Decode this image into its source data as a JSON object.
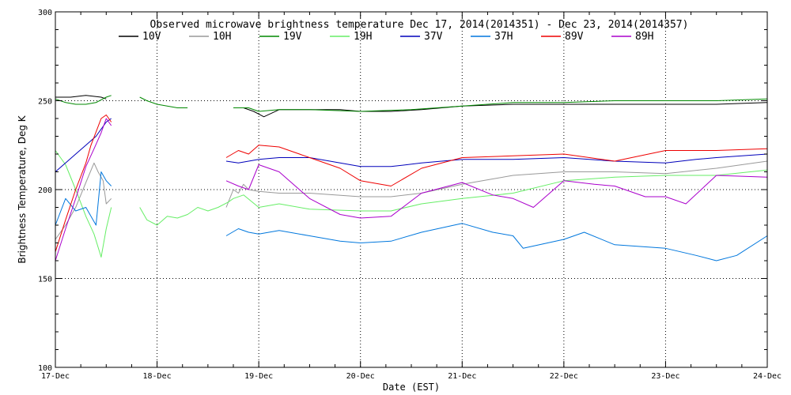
{
  "chart_data": {
    "type": "line",
    "title": "Observed microwave brightness temperature Dec 17, 2014(2014351) - Dec 23, 2014(2014357)",
    "xlabel": "Date (EST)",
    "ylabel": "Brightness Temperature, Deg K",
    "xlim": [
      0,
      7
    ],
    "ylim": [
      100,
      300
    ],
    "x_ticks": [
      {
        "value": 0,
        "label": "17-Dec"
      },
      {
        "value": 1,
        "label": "18-Dec"
      },
      {
        "value": 2,
        "label": "19-Dec"
      },
      {
        "value": 3,
        "label": "20-Dec"
      },
      {
        "value": 4,
        "label": "21-Dec"
      },
      {
        "value": 5,
        "label": "22-Dec"
      },
      {
        "value": 6,
        "label": "23-Dec"
      },
      {
        "value": 7,
        "label": "24-Dec"
      }
    ],
    "y_ticks": [
      {
        "value": 100,
        "label": "100"
      },
      {
        "value": 150,
        "label": "150"
      },
      {
        "value": 200,
        "label": "200"
      },
      {
        "value": 250,
        "label": "250"
      },
      {
        "value": 300,
        "label": "300"
      }
    ],
    "grid": true,
    "legend_position": "top",
    "series": [
      {
        "name": "10V",
        "color": "#000000",
        "segments": [
          [
            [
              0.0,
              252
            ],
            [
              0.15,
              252
            ],
            [
              0.3,
              253
            ],
            [
              0.45,
              252
            ],
            [
              0.5,
              251
            ]
          ],
          [
            [
              1.75,
              246
            ],
            [
              1.85,
              246
            ],
            [
              1.95,
              244
            ],
            [
              2.05,
              241
            ],
            [
              2.2,
              245
            ],
            [
              2.5,
              245
            ],
            [
              2.8,
              245
            ],
            [
              3.0,
              244
            ],
            [
              3.3,
              244
            ],
            [
              3.6,
              245
            ],
            [
              4.0,
              247
            ],
            [
              4.5,
              248
            ],
            [
              5.0,
              248
            ],
            [
              5.5,
              248
            ],
            [
              6.0,
              248
            ],
            [
              6.5,
              248
            ],
            [
              7.0,
              249
            ]
          ]
        ]
      },
      {
        "name": "10H",
        "color": "#999999",
        "segments": [
          [
            [
              0.0,
              172
            ],
            [
              0.1,
              180
            ],
            [
              0.2,
              190
            ],
            [
              0.3,
              204
            ],
            [
              0.38,
              215
            ],
            [
              0.42,
              210
            ],
            [
              0.47,
              205
            ],
            [
              0.5,
              192
            ],
            [
              0.55,
              195
            ]
          ],
          [
            [
              1.68,
              190
            ],
            [
              1.75,
              200
            ],
            [
              1.8,
              198
            ],
            [
              1.85,
              203
            ],
            [
              1.9,
              200
            ],
            [
              2.0,
              199
            ],
            [
              2.2,
              198
            ],
            [
              2.5,
              198
            ],
            [
              3.0,
              196
            ],
            [
              3.3,
              196
            ],
            [
              3.6,
              198
            ],
            [
              4.0,
              203
            ],
            [
              4.3,
              206
            ],
            [
              4.5,
              208
            ],
            [
              5.0,
              210
            ],
            [
              5.5,
              210
            ],
            [
              6.0,
              209
            ],
            [
              6.5,
              212
            ],
            [
              7.0,
              216
            ]
          ]
        ]
      },
      {
        "name": "19V",
        "color": "#008800",
        "segments": [
          [
            [
              0.0,
              251
            ],
            [
              0.1,
              249
            ],
            [
              0.2,
              248
            ],
            [
              0.3,
              248
            ],
            [
              0.4,
              249
            ],
            [
              0.5,
              252
            ],
            [
              0.55,
              253
            ]
          ],
          [
            [
              0.83,
              252
            ],
            [
              0.9,
              250
            ],
            [
              1.0,
              248
            ],
            [
              1.2,
              246
            ],
            [
              1.3,
              246
            ]
          ],
          [
            [
              1.75,
              246
            ],
            [
              1.9,
              246
            ],
            [
              2.0,
              244
            ],
            [
              2.2,
              245
            ],
            [
              2.5,
              245
            ],
            [
              3.0,
              244
            ],
            [
              3.5,
              245
            ],
            [
              4.0,
              247
            ],
            [
              4.5,
              249
            ],
            [
              5.0,
              249
            ],
            [
              5.5,
              250
            ],
            [
              6.0,
              250
            ],
            [
              6.5,
              250
            ],
            [
              7.0,
              251
            ]
          ]
        ]
      },
      {
        "name": "19H",
        "color": "#66ee66",
        "segments": [
          [
            [
              0.0,
              222
            ],
            [
              0.1,
              214
            ],
            [
              0.2,
              200
            ],
            [
              0.3,
              185
            ],
            [
              0.38,
              175
            ],
            [
              0.45,
              162
            ],
            [
              0.5,
              178
            ],
            [
              0.55,
              190
            ]
          ],
          [
            [
              0.83,
              190
            ],
            [
              0.9,
              183
            ],
            [
              1.0,
              180
            ],
            [
              1.1,
              185
            ],
            [
              1.2,
              184
            ],
            [
              1.3,
              186
            ],
            [
              1.4,
              190
            ],
            [
              1.5,
              188
            ],
            [
              1.6,
              190
            ],
            [
              1.7,
              193
            ],
            [
              1.75,
              195
            ],
            [
              1.85,
              197
            ],
            [
              2.0,
              190
            ],
            [
              2.2,
              192
            ],
            [
              2.5,
              189
            ],
            [
              3.0,
              188
            ],
            [
              3.3,
              188
            ],
            [
              3.6,
              192
            ],
            [
              4.0,
              195
            ],
            [
              4.5,
              198
            ],
            [
              5.0,
              205
            ],
            [
              5.5,
              207
            ],
            [
              6.0,
              208
            ],
            [
              6.5,
              208
            ],
            [
              7.0,
              211
            ]
          ]
        ]
      },
      {
        "name": "37V",
        "color": "#0000bb",
        "segments": [
          [
            [
              0.0,
              210
            ],
            [
              0.1,
              215
            ],
            [
              0.2,
              220
            ],
            [
              0.3,
              225
            ],
            [
              0.4,
              230
            ],
            [
              0.5,
              238
            ],
            [
              0.55,
              240
            ]
          ],
          [
            [
              1.68,
              216
            ],
            [
              1.8,
              215
            ],
            [
              1.9,
              216
            ],
            [
              2.0,
              217
            ],
            [
              2.2,
              218
            ],
            [
              2.5,
              218
            ],
            [
              2.8,
              215
            ],
            [
              3.0,
              213
            ],
            [
              3.3,
              213
            ],
            [
              3.6,
              215
            ],
            [
              4.0,
              217
            ],
            [
              4.5,
              217
            ],
            [
              5.0,
              218
            ],
            [
              5.5,
              216
            ],
            [
              6.0,
              215
            ],
            [
              6.3,
              217
            ],
            [
              6.5,
              218
            ],
            [
              7.0,
              220
            ]
          ]
        ]
      },
      {
        "name": "37H",
        "color": "#0077dd",
        "segments": [
          [
            [
              0.0,
              180
            ],
            [
              0.1,
              195
            ],
            [
              0.2,
              188
            ],
            [
              0.3,
              190
            ],
            [
              0.35,
              185
            ],
            [
              0.4,
              180
            ],
            [
              0.45,
              210
            ],
            [
              0.5,
              205
            ],
            [
              0.55,
              202
            ]
          ],
          [
            [
              1.68,
              174
            ],
            [
              1.8,
              178
            ],
            [
              1.9,
              176
            ],
            [
              2.0,
              175
            ],
            [
              2.2,
              177
            ],
            [
              2.5,
              174
            ],
            [
              2.8,
              171
            ],
            [
              3.0,
              170
            ],
            [
              3.3,
              171
            ],
            [
              3.6,
              176
            ],
            [
              4.0,
              181
            ],
            [
              4.3,
              176
            ],
            [
              4.5,
              174
            ],
            [
              4.6,
              167
            ],
            [
              5.0,
              172
            ],
            [
              5.2,
              176
            ],
            [
              5.5,
              169
            ],
            [
              6.0,
              167
            ],
            [
              6.3,
              163
            ],
            [
              6.5,
              160
            ],
            [
              6.7,
              163
            ],
            [
              7.0,
              174
            ]
          ]
        ]
      },
      {
        "name": "89V",
        "color": "#ee0000",
        "segments": [
          [
            [
              0.0,
              165
            ],
            [
              0.1,
              183
            ],
            [
              0.2,
              200
            ],
            [
              0.3,
              215
            ],
            [
              0.35,
              225
            ],
            [
              0.45,
              240
            ],
            [
              0.5,
              242
            ],
            [
              0.55,
              238
            ]
          ],
          [
            [
              1.68,
              218
            ],
            [
              1.8,
              222
            ],
            [
              1.9,
              220
            ],
            [
              2.0,
              225
            ],
            [
              2.2,
              224
            ],
            [
              2.5,
              218
            ],
            [
              2.8,
              212
            ],
            [
              3.0,
              205
            ],
            [
              3.3,
              202
            ],
            [
              3.6,
              212
            ],
            [
              4.0,
              218
            ],
            [
              4.5,
              219
            ],
            [
              5.0,
              220
            ],
            [
              5.5,
              216
            ],
            [
              6.0,
              222
            ],
            [
              6.5,
              222
            ],
            [
              7.0,
              223
            ]
          ]
        ]
      },
      {
        "name": "89H",
        "color": "#aa00cc",
        "segments": [
          [
            [
              0.0,
              160
            ],
            [
              0.1,
              178
            ],
            [
              0.2,
              195
            ],
            [
              0.3,
              213
            ],
            [
              0.38,
              223
            ],
            [
              0.45,
              232
            ],
            [
              0.5,
              240
            ],
            [
              0.55,
              236
            ]
          ],
          [
            [
              1.68,
              205
            ],
            [
              1.8,
              202
            ],
            [
              1.9,
              200
            ],
            [
              2.0,
              214
            ],
            [
              2.2,
              210
            ],
            [
              2.5,
              195
            ],
            [
              2.8,
              186
            ],
            [
              3.0,
              184
            ],
            [
              3.3,
              185
            ],
            [
              3.6,
              198
            ],
            [
              4.0,
              204
            ],
            [
              4.3,
              197
            ],
            [
              4.5,
              195
            ],
            [
              4.7,
              190
            ],
            [
              5.0,
              205
            ],
            [
              5.3,
              203
            ],
            [
              5.5,
              202
            ],
            [
              5.8,
              196
            ],
            [
              6.0,
              196
            ],
            [
              6.2,
              192
            ],
            [
              6.5,
              208
            ],
            [
              7.0,
              207
            ]
          ]
        ]
      }
    ]
  }
}
